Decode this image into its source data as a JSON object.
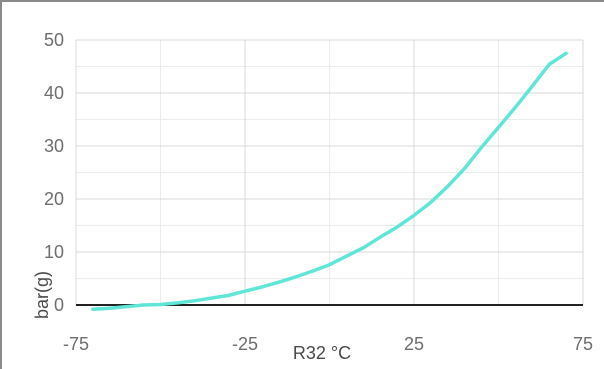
{
  "chart_data": {
    "type": "line",
    "title": "",
    "xlabel": "R32 °C",
    "ylabel": "bar(g)",
    "xlim": [
      -75,
      75
    ],
    "ylim": [
      0,
      50
    ],
    "x_ticks": [
      "-75",
      "-25",
      "25",
      "75"
    ],
    "y_ticks": [
      "0",
      "10",
      "20",
      "30",
      "40",
      "50"
    ],
    "grid": true,
    "series": [
      {
        "color": "#5fe6d7",
        "x": [
          -70,
          -65,
          -60,
          -55,
          -50,
          -45,
          -40,
          -35,
          -30,
          -25,
          -20,
          -15,
          -10,
          -5,
          0,
          5,
          10,
          15,
          20,
          25,
          30,
          35,
          40,
          45,
          50,
          55,
          60,
          65,
          70
        ],
        "y": [
          -0.8,
          -0.6,
          -0.3,
          0.0,
          0.1,
          0.4,
          0.8,
          1.3,
          1.8,
          2.6,
          3.4,
          4.3,
          5.3,
          6.4,
          7.6,
          9.2,
          10.8,
          12.8,
          14.7,
          16.9,
          19.4,
          22.4,
          25.8,
          29.8,
          33.5,
          37.3,
          41.3,
          45.4,
          47.5
        ]
      }
    ]
  }
}
